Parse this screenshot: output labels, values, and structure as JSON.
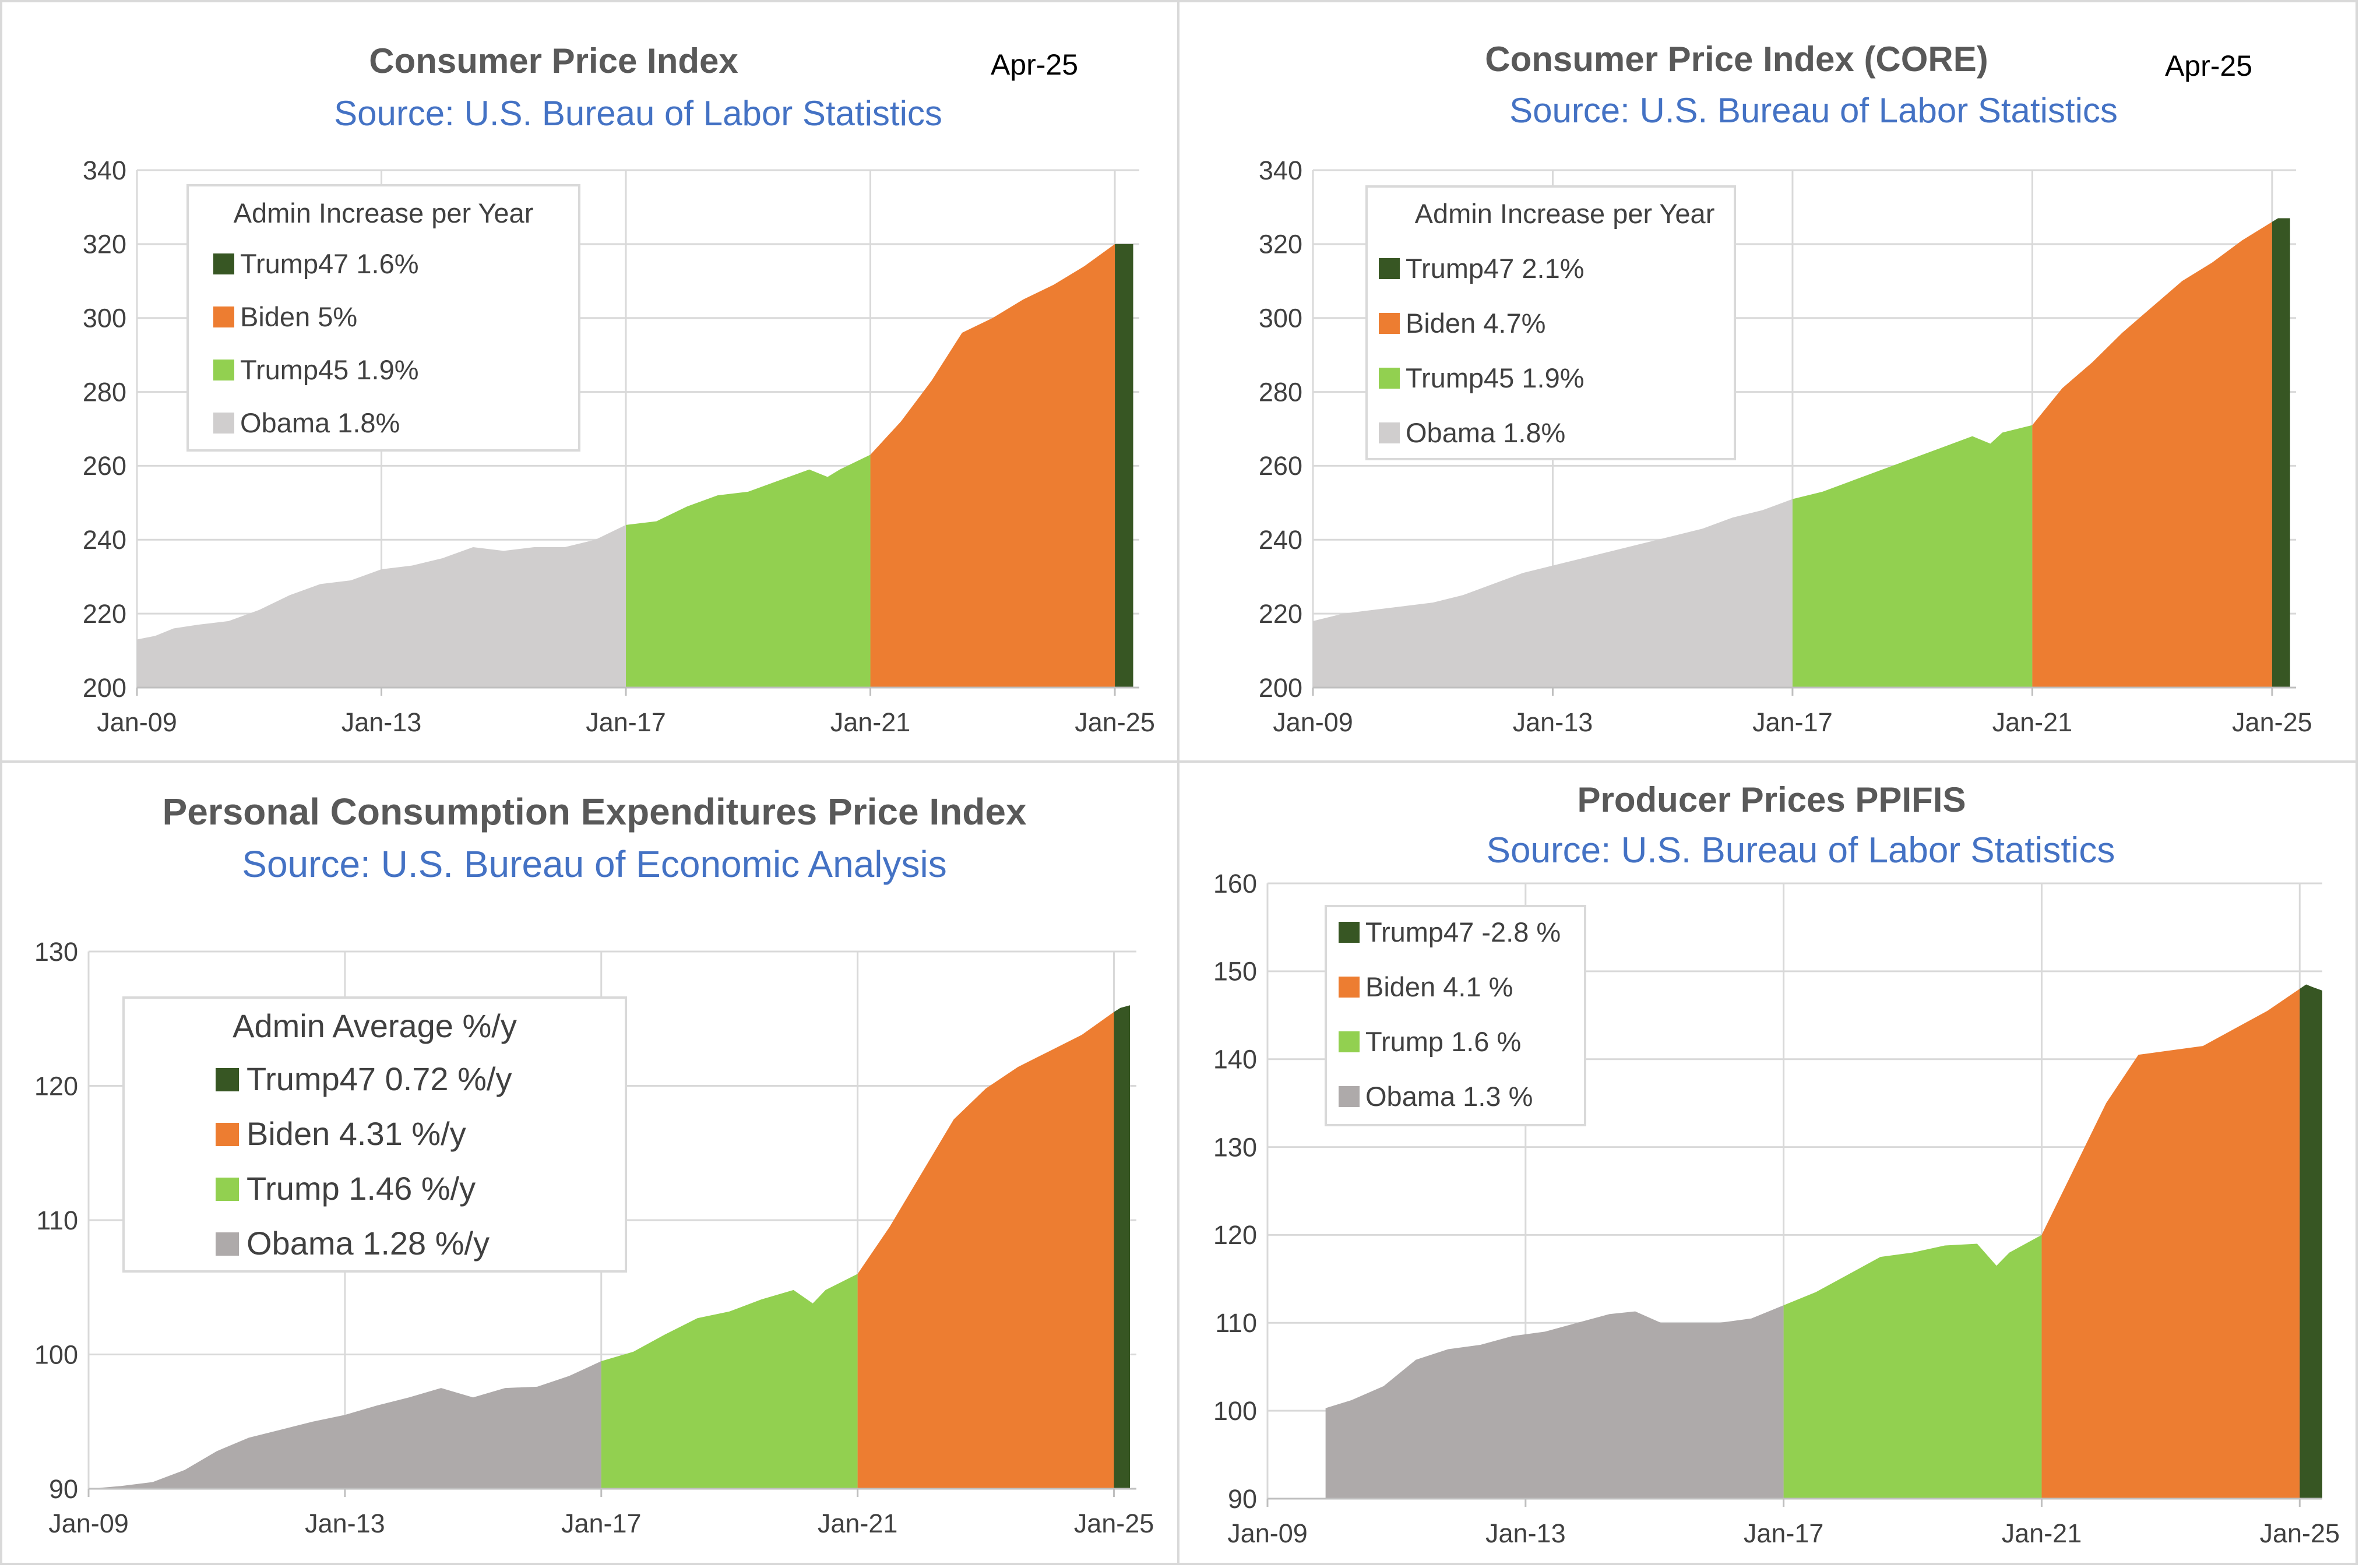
{
  "chart_data": [
    {
      "type": "area",
      "title": "Consumer Price Index",
      "subtitle": "Source: U.S. Bureau of Labor Statistics",
      "date_label": "Apr-25",
      "xlabel": "",
      "ylabel": "",
      "x_range": [
        2009.0,
        2025.4
      ],
      "ylim": [
        200,
        340
      ],
      "yticks": [
        200,
        220,
        240,
        260,
        280,
        300,
        320,
        340
      ],
      "xticks": [
        {
          "x": 2009,
          "label": "Jan-09"
        },
        {
          "x": 2013,
          "label": "Jan-13"
        },
        {
          "x": 2017,
          "label": "Jan-17"
        },
        {
          "x": 2021,
          "label": "Jan-21"
        },
        {
          "x": 2025,
          "label": "Jan-25"
        }
      ],
      "legend_title": "Admin Increase per Year",
      "legend": [
        "Trump47 1.6%",
        "Biden 5%",
        "Trump45 1.9%",
        "Obama 1.8%"
      ],
      "series": [
        {
          "name": "Obama",
          "color": "#d0cece",
          "x": [
            2009.0,
            2009.3,
            2009.6,
            2010.0,
            2010.5,
            2011.0,
            2011.5,
            2012.0,
            2012.5,
            2013.0,
            2013.5,
            2014.0,
            2014.5,
            2015.0,
            2015.5,
            2016.0,
            2016.5,
            2017.0
          ],
          "y": [
            213,
            214,
            216,
            217,
            218,
            221,
            225,
            228,
            229,
            232,
            233,
            235,
            238,
            237,
            238,
            238,
            240,
            244
          ]
        },
        {
          "name": "Trump45",
          "color": "#92d050",
          "x": [
            2017.0,
            2017.5,
            2018.0,
            2018.5,
            2019.0,
            2019.5,
            2020.0,
            2020.3,
            2020.5,
            2021.0
          ],
          "y": [
            244,
            245,
            249,
            252,
            253,
            256,
            259,
            257,
            259,
            263
          ]
        },
        {
          "name": "Biden",
          "color": "#ed7d31",
          "x": [
            2021.0,
            2021.5,
            2022.0,
            2022.5,
            2023.0,
            2023.5,
            2024.0,
            2024.5,
            2025.0
          ],
          "y": [
            263,
            272,
            283,
            296,
            300,
            305,
            309,
            314,
            320
          ]
        },
        {
          "name": "Trump47",
          "color": "#375623",
          "x": [
            2025.0,
            2025.1,
            2025.3
          ],
          "y": [
            320,
            320,
            320
          ]
        }
      ]
    },
    {
      "type": "area",
      "title": "Consumer Price Index (CORE)",
      "subtitle": "Source: U.S. Bureau of Labor Statistics",
      "date_label": "Apr-25",
      "xlabel": "",
      "ylabel": "",
      "x_range": [
        2009.0,
        2025.4
      ],
      "ylim": [
        200,
        340
      ],
      "yticks": [
        200,
        220,
        240,
        260,
        280,
        300,
        320,
        340
      ],
      "xticks": [
        {
          "x": 2009,
          "label": "Jan-09"
        },
        {
          "x": 2013,
          "label": "Jan-13"
        },
        {
          "x": 2017,
          "label": "Jan-17"
        },
        {
          "x": 2021,
          "label": "Jan-21"
        },
        {
          "x": 2025,
          "label": "Jan-25"
        }
      ],
      "legend_title": "Admin Increase per Year",
      "legend": [
        "Trump47 2.1%",
        "Biden 4.7%",
        "Trump45 1.9%",
        "Obama 1.8%"
      ],
      "series": [
        {
          "name": "Obama",
          "color": "#d0cece",
          "x": [
            2009.0,
            2009.5,
            2010.0,
            2010.5,
            2011.0,
            2011.5,
            2012.0,
            2012.5,
            2013.0,
            2013.5,
            2014.0,
            2014.5,
            2015.0,
            2015.5,
            2016.0,
            2016.5,
            2017.0
          ],
          "y": [
            218,
            220,
            221,
            222,
            223,
            225,
            228,
            231,
            233,
            235,
            237,
            239,
            241,
            243,
            246,
            248,
            251
          ]
        },
        {
          "name": "Trump45",
          "color": "#92d050",
          "x": [
            2017.0,
            2017.5,
            2018.0,
            2018.5,
            2019.0,
            2019.5,
            2020.0,
            2020.3,
            2020.5,
            2021.0
          ],
          "y": [
            251,
            253,
            256,
            259,
            262,
            265,
            268,
            266,
            269,
            271
          ]
        },
        {
          "name": "Biden",
          "color": "#ed7d31",
          "x": [
            2021.0,
            2021.5,
            2022.0,
            2022.5,
            2023.0,
            2023.5,
            2024.0,
            2024.5,
            2025.0
          ],
          "y": [
            271,
            281,
            288,
            296,
            303,
            310,
            315,
            321,
            326
          ]
        },
        {
          "name": "Trump47",
          "color": "#375623",
          "x": [
            2025.0,
            2025.1,
            2025.3
          ],
          "y": [
            326,
            327,
            327
          ]
        }
      ]
    },
    {
      "type": "area",
      "title": "Personal Consumption Expenditures Price Index",
      "subtitle": "Source: U.S. Bureau of Economic Analysis",
      "xlabel": "",
      "ylabel": "",
      "x_range": [
        2009.0,
        2025.35
      ],
      "ylim": [
        90,
        130
      ],
      "yticks": [
        90,
        100,
        110,
        120,
        130
      ],
      "xticks": [
        {
          "x": 2009,
          "label": "Jan-09"
        },
        {
          "x": 2013,
          "label": "Jan-13"
        },
        {
          "x": 2017,
          "label": "Jan-17"
        },
        {
          "x": 2021,
          "label": "Jan-21"
        },
        {
          "x": 2025,
          "label": "Jan-25"
        }
      ],
      "legend_title": "Admin Average %/y",
      "legend": [
        "Trump47 0.72 %/y",
        "Biden 4.31 %/y",
        "Trump 1.46 %/y",
        "Obama 1.28 %/y"
      ],
      "series": [
        {
          "name": "Obama",
          "color": "#aeaaaa",
          "x": [
            2009.0,
            2009.5,
            2010.0,
            2010.5,
            2011.0,
            2011.5,
            2012.0,
            2012.5,
            2013.0,
            2013.5,
            2014.0,
            2014.5,
            2015.0,
            2015.5,
            2016.0,
            2016.5,
            2017.0
          ],
          "y": [
            90.0,
            90.2,
            90.5,
            91.4,
            92.8,
            93.8,
            94.4,
            95.0,
            95.5,
            96.2,
            96.8,
            97.5,
            96.8,
            97.5,
            97.6,
            98.4,
            99.5
          ]
        },
        {
          "name": "Trump",
          "color": "#92d050",
          "x": [
            2017.0,
            2017.5,
            2018.0,
            2018.5,
            2019.0,
            2019.5,
            2020.0,
            2020.3,
            2020.5,
            2021.0
          ],
          "y": [
            99.5,
            100.2,
            101.5,
            102.7,
            103.2,
            104.1,
            104.8,
            103.8,
            104.8,
            106.0
          ]
        },
        {
          "name": "Biden",
          "color": "#ed7d31",
          "x": [
            2021.0,
            2021.5,
            2022.0,
            2022.5,
            2023.0,
            2023.5,
            2024.0,
            2024.5,
            2025.0
          ],
          "y": [
            106.0,
            109.5,
            113.5,
            117.5,
            119.8,
            121.4,
            122.6,
            123.8,
            125.5
          ]
        },
        {
          "name": "Trump47",
          "color": "#375623",
          "x": [
            2025.0,
            2025.1,
            2025.25
          ],
          "y": [
            125.5,
            125.8,
            126.0
          ]
        }
      ]
    },
    {
      "type": "area",
      "title": "Producer Prices PPIFIS",
      "subtitle": "Source: U.S. Bureau of Labor Statistics",
      "xlabel": "",
      "ylabel": "",
      "x_range": [
        2009.0,
        2025.35
      ],
      "ylim": [
        90,
        160
      ],
      "yticks": [
        90,
        100,
        110,
        120,
        130,
        140,
        150,
        160
      ],
      "xticks": [
        {
          "x": 2009,
          "label": "Jan-09"
        },
        {
          "x": 2013,
          "label": "Jan-13"
        },
        {
          "x": 2017,
          "label": "Jan-17"
        },
        {
          "x": 2021,
          "label": "Jan-21"
        },
        {
          "x": 2025,
          "label": "Jan-25"
        }
      ],
      "legend": [
        "Trump47 -2.8 %",
        "Biden 4.1 %",
        "Trump 1.6 %",
        "Obama 1.3 %"
      ],
      "series": [
        {
          "name": "Obama",
          "color": "#aeaaaa",
          "x": [
            2009.9,
            2010.3,
            2010.8,
            2011.3,
            2011.8,
            2012.3,
            2012.8,
            2013.3,
            2013.8,
            2014.3,
            2014.7,
            2015.1,
            2015.5,
            2016.0,
            2016.5,
            2017.0
          ],
          "y": [
            100.3,
            101.2,
            102.8,
            105.8,
            107.0,
            107.5,
            108.5,
            109.0,
            110.0,
            111.0,
            111.3,
            110.0,
            110.0,
            110.0,
            110.5,
            112.0
          ]
        },
        {
          "name": "Trump",
          "color": "#92d050",
          "x": [
            2017.0,
            2017.5,
            2018.0,
            2018.5,
            2019.0,
            2019.5,
            2020.0,
            2020.3,
            2020.5,
            2021.0
          ],
          "y": [
            112.0,
            113.5,
            115.5,
            117.5,
            118.0,
            118.8,
            119.0,
            116.5,
            118.0,
            120.0
          ]
        },
        {
          "name": "Biden",
          "color": "#ed7d31",
          "x": [
            2021.0,
            2021.5,
            2022.0,
            2022.5,
            2023.0,
            2023.5,
            2024.0,
            2024.5,
            2025.0
          ],
          "y": [
            120.0,
            127.5,
            135.0,
            140.5,
            141.0,
            141.5,
            143.5,
            145.5,
            148.0
          ]
        },
        {
          "name": "Trump47",
          "color": "#375623",
          "x": [
            2025.0,
            2025.1,
            2025.2,
            2025.35
          ],
          "y": [
            148.0,
            148.5,
            148.2,
            147.8
          ]
        }
      ]
    }
  ]
}
